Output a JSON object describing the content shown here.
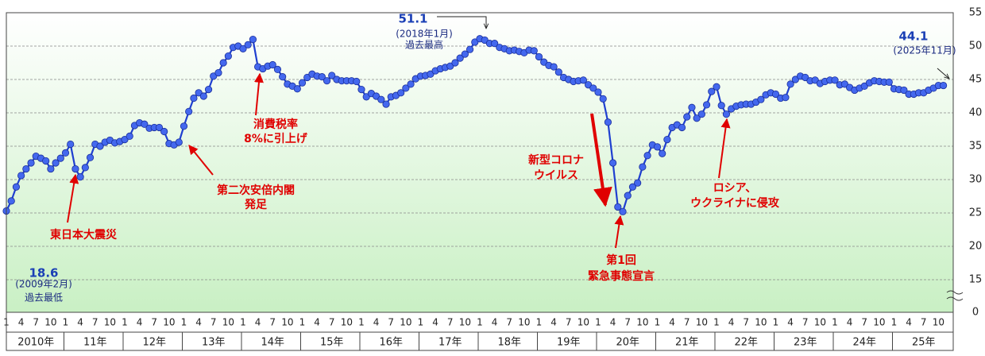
{
  "chart_data": {
    "type": "line",
    "categories": [
      "1",
      null,
      null,
      "4",
      null,
      null,
      "7",
      null,
      null,
      "10",
      null,
      null,
      "1",
      null,
      null,
      "4",
      null,
      null,
      "7",
      null,
      null,
      "10",
      null,
      null,
      "1",
      null,
      null,
      "4",
      null,
      null,
      "7",
      null,
      null,
      "10",
      null,
      null,
      "1",
      null,
      null,
      "4",
      null,
      null,
      "7",
      null,
      null,
      "10",
      null,
      null,
      "1",
      null,
      null,
      "4",
      null,
      null,
      "7",
      null,
      null,
      "10",
      null,
      null,
      "1",
      null,
      null,
      "4",
      null,
      null,
      "7",
      null,
      null,
      "10",
      null,
      null,
      "1",
      null,
      null,
      "4",
      null,
      null,
      "7",
      null,
      null,
      "10",
      null,
      null,
      "1",
      null,
      null,
      "4",
      null,
      null,
      "7",
      null,
      null,
      "10",
      null,
      null,
      "1",
      null,
      null,
      "4",
      null,
      null,
      "7",
      null,
      null,
      "10",
      null,
      null,
      "1",
      null,
      null,
      "4",
      null,
      null,
      "7",
      null,
      null,
      "10",
      null,
      null,
      "1",
      null,
      null,
      "4",
      null,
      null,
      "7",
      null,
      null,
      "10",
      null,
      null,
      "1",
      null,
      null,
      "4",
      null,
      null,
      "7",
      null,
      null,
      "10",
      null,
      null,
      "1",
      null,
      null,
      "4",
      null,
      null,
      "7",
      null,
      null,
      "10",
      null,
      null,
      "1",
      null,
      null,
      "4",
      null,
      null,
      "7",
      null,
      null,
      "10",
      null,
      null,
      "1",
      null,
      null,
      "4",
      null,
      null,
      "7",
      null,
      null,
      "10",
      null,
      null,
      "1",
      null,
      null,
      "4",
      null,
      null,
      "7",
      null,
      null,
      "10",
      null
    ],
    "year_labels": [
      "2010年",
      "11年",
      "12年",
      "13年",
      "14年",
      "15年",
      "16年",
      "17年",
      "18年",
      "19年",
      "20年",
      "21年",
      "22年",
      "23年",
      "24年",
      "25年"
    ],
    "series": [
      {
        "color": "#1f3fd0",
        "values": [
          25.3,
          26.8,
          28.9,
          30.6,
          31.6,
          32.5,
          33.5,
          33.2,
          32.8,
          31.6,
          32.5,
          33.2,
          34.0,
          35.3,
          31.6,
          30.4,
          31.8,
          33.3,
          35.3,
          35.0,
          35.6,
          35.9,
          35.5,
          35.7,
          36.0,
          36.5,
          38.1,
          38.5,
          38.3,
          37.7,
          37.8,
          37.8,
          37.2,
          35.4,
          35.2,
          35.6,
          38.0,
          40.2,
          42.2,
          43.0,
          42.5,
          43.5,
          45.5,
          46.0,
          47.5,
          48.5,
          49.8,
          50.0,
          49.6,
          50.2,
          51.0,
          46.9,
          46.6,
          47.0,
          47.2,
          46.5,
          45.4,
          44.3,
          44.0,
          43.6,
          44.5,
          45.3,
          45.8,
          45.5,
          45.4,
          44.8,
          45.6,
          45.0,
          44.8,
          44.8,
          44.8,
          44.7,
          43.5,
          42.4,
          42.9,
          42.5,
          42.0,
          41.3,
          42.4,
          42.6,
          43.0,
          43.7,
          44.3,
          45.1,
          45.5,
          45.6,
          45.8,
          46.3,
          46.6,
          46.8,
          47.0,
          47.5,
          48.2,
          48.8,
          49.5,
          50.6,
          51.1,
          50.9,
          50.4,
          50.4,
          49.8,
          49.6,
          49.3,
          49.4,
          49.2,
          49.0,
          49.4,
          49.3,
          48.4,
          47.6,
          47.1,
          46.9,
          46.1,
          45.3,
          45.0,
          44.7,
          44.8,
          44.9,
          44.2,
          43.7,
          43.1,
          42.1,
          38.6,
          32.5,
          25.9,
          25.2,
          27.6,
          28.9,
          29.5,
          31.9,
          33.6,
          35.2,
          34.9,
          33.9,
          36.0,
          37.8,
          38.2,
          37.8,
          39.4,
          40.8,
          39.2,
          39.8,
          41.2,
          43.2,
          43.9,
          41.1,
          39.8,
          40.6,
          41.0,
          41.2,
          41.3,
          41.3,
          41.6,
          42.0,
          42.7,
          43.0,
          42.8,
          42.2,
          42.3,
          44.3,
          45.0,
          45.5,
          45.3,
          44.8,
          44.9,
          44.4,
          44.7,
          44.9,
          44.9,
          44.2,
          44.3,
          43.8,
          43.4,
          43.7,
          44.0,
          44.5,
          44.8,
          44.7,
          44.6,
          44.6,
          43.6,
          43.5,
          43.4,
          42.8,
          42.8,
          43.0,
          43.0,
          43.4,
          43.7,
          44.1,
          44.1
        ]
      }
    ],
    "ylim": [
      0,
      55
    ],
    "yticks": [
      0,
      15,
      20,
      25,
      30,
      35,
      40,
      45,
      50,
      55
    ],
    "y_break": [
      0,
      15
    ],
    "grid": true,
    "annotations": [
      {
        "value": 18.6,
        "lines": [
          "(2009年2月)",
          "過去最低"
        ]
      },
      {
        "value": 51.1,
        "lines": [
          "(2018年1月)",
          "過去最高"
        ]
      },
      {
        "value": 44.1,
        "lines": [
          "(2025年11月)"
        ]
      }
    ],
    "events": [
      {
        "lines": [
          "東日本大震災"
        ]
      },
      {
        "lines": [
          "第二次安倍内閣",
          "発足"
        ]
      },
      {
        "lines": [
          "消費税率",
          "8%に引上げ"
        ]
      },
      {
        "lines": [
          "新型コロナ",
          "ウイルス"
        ]
      },
      {
        "lines": [
          "第1回",
          "緊急事態宣言"
        ]
      },
      {
        "lines": [
          "ロシア、",
          "ウクライナに侵攻"
        ]
      }
    ]
  }
}
